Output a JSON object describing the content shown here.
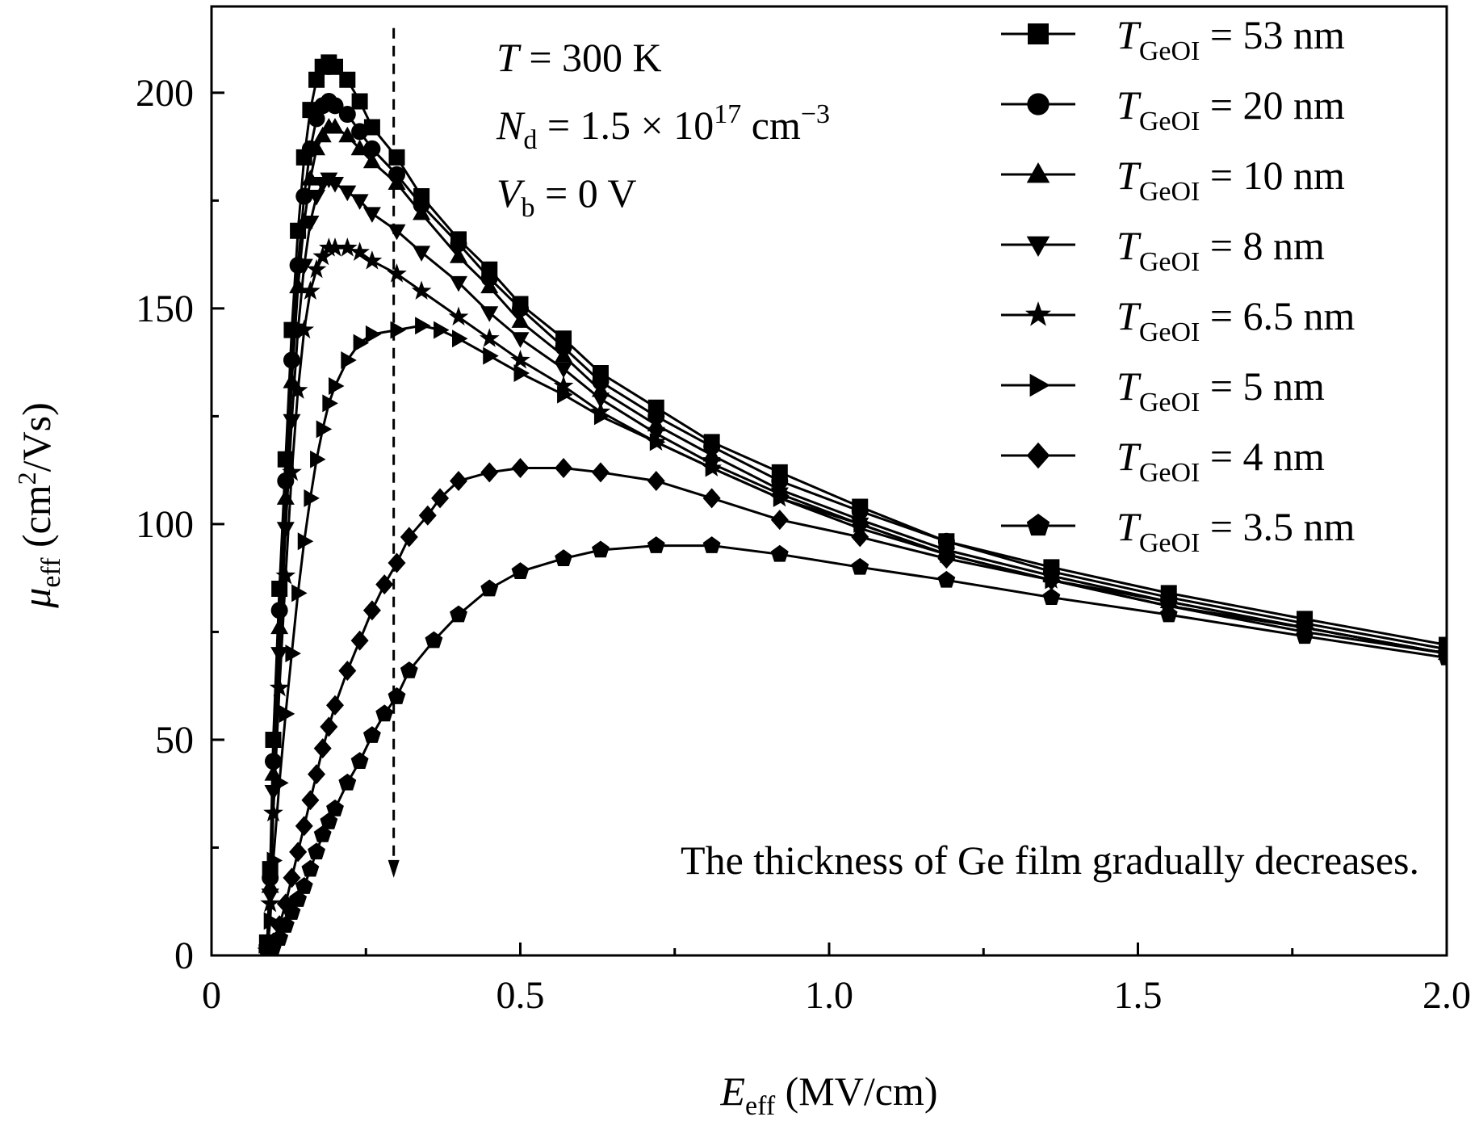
{
  "chart_data": {
    "type": "line",
    "title": "",
    "xlabel": {
      "sym": "E",
      "sub": "eff",
      "unit": " (MV/cm)"
    },
    "ylabel": {
      "sym": "μ",
      "sub": "eff",
      "unit_pre": " (cm",
      "unit_sup": "2",
      "unit_post": "/Vs)"
    },
    "xlim": [
      0,
      2.0
    ],
    "ylim": [
      0,
      220
    ],
    "xticks": [
      "0",
      "0.5",
      "1.0",
      "1.5",
      "2.0"
    ],
    "xtick_values": [
      0,
      0.5,
      1.0,
      1.5,
      2.0
    ],
    "yticks": [
      "0",
      "50",
      "100",
      "150",
      "200"
    ],
    "ytick_values": [
      0,
      50,
      100,
      150,
      200
    ],
    "grid": false,
    "legend_position": "top-right",
    "conditions": [
      {
        "sym": "T",
        "sub": "",
        "text": " = 300 K"
      },
      {
        "sym": "N",
        "sub": "d",
        "text": " = 1.5 × 10",
        "sup": "17",
        "text2": " cm",
        "sup2": "−3"
      },
      {
        "sym": "V",
        "sub": "b",
        "text": " = 0 V"
      }
    ],
    "annotation": "The thickness of Ge film gradually decreases.",
    "arrow_x": 0.295,
    "arrow_y": [
      215,
      18
    ],
    "series": [
      {
        "name_sym": "T",
        "name_sub": "GeOI",
        "name_val": " = 53 nm",
        "marker": "square",
        "x": [
          0.09,
          0.095,
          0.1,
          0.11,
          0.12,
          0.13,
          0.14,
          0.15,
          0.16,
          0.17,
          0.18,
          0.19,
          0.2,
          0.22,
          0.24,
          0.26,
          0.3,
          0.34,
          0.4,
          0.45,
          0.5,
          0.57,
          0.63,
          0.72,
          0.81,
          0.92,
          1.05,
          1.19,
          1.36,
          1.55,
          1.77,
          2.0
        ],
        "y": [
          3,
          20,
          50,
          85,
          115,
          145,
          168,
          185,
          196,
          203,
          206,
          207,
          206,
          203,
          198,
          192,
          185,
          176,
          166,
          159,
          151,
          143,
          135,
          127,
          119,
          112,
          104,
          96,
          90,
          84,
          78,
          72
        ]
      },
      {
        "name_sym": "T",
        "name_sub": "GeOI",
        "name_val": " = 20 nm",
        "marker": "circle",
        "x": [
          0.09,
          0.095,
          0.1,
          0.11,
          0.12,
          0.13,
          0.14,
          0.15,
          0.16,
          0.17,
          0.18,
          0.19,
          0.2,
          0.22,
          0.24,
          0.26,
          0.3,
          0.34,
          0.4,
          0.45,
          0.5,
          0.57,
          0.63,
          0.72,
          0.81,
          0.92,
          1.05,
          1.19,
          1.36,
          1.55,
          1.77,
          2.0
        ],
        "y": [
          2,
          18,
          45,
          80,
          110,
          138,
          160,
          176,
          187,
          194,
          197,
          198,
          197,
          195,
          191,
          187,
          181,
          174,
          165,
          157,
          150,
          141,
          133,
          125,
          118,
          110,
          103,
          96,
          89,
          83,
          77,
          71
        ]
      },
      {
        "name_sym": "T",
        "name_sub": "GeOI",
        "name_val": " = 10 nm",
        "marker": "triangle-up",
        "x": [
          0.09,
          0.095,
          0.1,
          0.11,
          0.12,
          0.13,
          0.14,
          0.15,
          0.16,
          0.17,
          0.18,
          0.19,
          0.2,
          0.22,
          0.24,
          0.26,
          0.3,
          0.34,
          0.4,
          0.45,
          0.5,
          0.57,
          0.63,
          0.72,
          0.81,
          0.92,
          1.05,
          1.19,
          1.36,
          1.55,
          1.77,
          2.0
        ],
        "y": [
          2,
          16,
          42,
          76,
          106,
          133,
          155,
          170,
          180,
          187,
          190,
          192,
          192,
          190,
          187,
          184,
          179,
          172,
          162,
          155,
          147,
          139,
          131,
          123,
          116,
          108,
          101,
          94,
          88,
          82,
          76,
          70
        ]
      },
      {
        "name_sym": "T",
        "name_sub": "GeOI",
        "name_val": " = 8 nm",
        "marker": "triangle-down",
        "x": [
          0.09,
          0.095,
          0.1,
          0.11,
          0.12,
          0.13,
          0.14,
          0.15,
          0.16,
          0.17,
          0.18,
          0.19,
          0.2,
          0.22,
          0.24,
          0.26,
          0.3,
          0.34,
          0.4,
          0.45,
          0.5,
          0.57,
          0.63,
          0.72,
          0.81,
          0.92,
          1.05,
          1.19,
          1.36,
          1.55,
          1.77,
          2.0
        ],
        "y": [
          1,
          14,
          38,
          70,
          99,
          124,
          145,
          160,
          170,
          176,
          179,
          180,
          179,
          177,
          175,
          172,
          168,
          163,
          156,
          149,
          143,
          136,
          129,
          121,
          114,
          107,
          100,
          93,
          87,
          81,
          75,
          70
        ]
      },
      {
        "name_sym": "T",
        "name_sub": "GeOI",
        "name_val": " = 6.5 nm",
        "marker": "star",
        "x": [
          0.09,
          0.095,
          0.1,
          0.11,
          0.12,
          0.13,
          0.14,
          0.15,
          0.16,
          0.17,
          0.18,
          0.19,
          0.2,
          0.22,
          0.24,
          0.26,
          0.3,
          0.34,
          0.4,
          0.45,
          0.5,
          0.57,
          0.63,
          0.72,
          0.81,
          0.92,
          1.05,
          1.19,
          1.36,
          1.55,
          1.77,
          2.0
        ],
        "y": [
          1,
          12,
          33,
          62,
          88,
          112,
          131,
          145,
          154,
          159,
          162,
          164,
          164,
          164,
          163,
          161,
          158,
          154,
          148,
          143,
          138,
          132,
          126,
          119,
          113,
          106,
          99,
          93,
          87,
          81,
          76,
          70
        ]
      },
      {
        "name_sym": "T",
        "name_sub": "GeOI",
        "name_val": " = 5 nm",
        "marker": "triangle-right",
        "x": [
          0.09,
          0.095,
          0.1,
          0.11,
          0.12,
          0.13,
          0.14,
          0.15,
          0.16,
          0.17,
          0.18,
          0.19,
          0.2,
          0.22,
          0.24,
          0.26,
          0.3,
          0.34,
          0.37,
          0.4,
          0.45,
          0.5,
          0.57,
          0.63,
          0.72,
          0.81,
          0.92,
          1.05,
          1.19,
          1.36,
          1.55,
          1.77,
          2.0
        ],
        "y": [
          1,
          8,
          22,
          40,
          56,
          70,
          84,
          96,
          106,
          115,
          122,
          128,
          132,
          138,
          142,
          144,
          145,
          146,
          145,
          143,
          139,
          135,
          130,
          125,
          119,
          113,
          106,
          100,
          93,
          87,
          81,
          76,
          70
        ]
      },
      {
        "name_sym": "T",
        "name_sub": "GeOI",
        "name_val": " = 4 nm",
        "marker": "diamond",
        "x": [
          0.09,
          0.1,
          0.11,
          0.12,
          0.13,
          0.14,
          0.15,
          0.16,
          0.17,
          0.18,
          0.19,
          0.2,
          0.22,
          0.24,
          0.26,
          0.28,
          0.3,
          0.32,
          0.35,
          0.37,
          0.4,
          0.45,
          0.5,
          0.57,
          0.63,
          0.72,
          0.81,
          0.92,
          1.05,
          1.19,
          1.36,
          1.55,
          1.77,
          2.0
        ],
        "y": [
          1,
          3,
          7,
          12,
          18,
          24,
          30,
          36,
          42,
          48,
          53,
          58,
          66,
          73,
          80,
          86,
          91,
          97,
          102,
          106,
          110,
          112,
          113,
          113,
          112,
          110,
          106,
          101,
          97,
          92,
          87,
          82,
          76,
          70
        ]
      },
      {
        "name_sym": "T",
        "name_sub": "GeOI",
        "name_val": " = 3.5 nm",
        "marker": "pentagon",
        "x": [
          0.09,
          0.1,
          0.11,
          0.12,
          0.13,
          0.14,
          0.15,
          0.16,
          0.17,
          0.18,
          0.19,
          0.2,
          0.22,
          0.24,
          0.26,
          0.28,
          0.3,
          0.32,
          0.36,
          0.4,
          0.45,
          0.5,
          0.57,
          0.63,
          0.72,
          0.81,
          0.92,
          1.05,
          1.19,
          1.36,
          1.55,
          1.77,
          2.0
        ],
        "y": [
          1,
          2,
          4,
          7,
          10,
          13,
          16,
          20,
          24,
          28,
          31,
          34,
          40,
          45,
          51,
          56,
          60,
          66,
          73,
          79,
          85,
          89,
          92,
          94,
          95,
          95,
          93,
          90,
          87,
          83,
          79,
          74,
          69
        ]
      }
    ]
  }
}
